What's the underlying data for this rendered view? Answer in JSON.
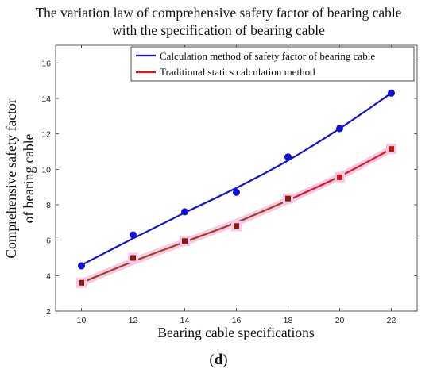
{
  "chart_data": {
    "type": "line",
    "title_line1": "The variation law of comprehensive safety factor of bearing cable",
    "title_line2": "with the specification of bearing cable",
    "xlabel": "Bearing cable specifications",
    "ylabel_line1": "Comprehensive safety factor",
    "ylabel_line2": "of bearing cable",
    "panel_label": "d",
    "xlim": [
      9,
      23
    ],
    "ylim": [
      2,
      17
    ],
    "xticks": [
      10,
      12,
      14,
      16,
      18,
      20,
      22
    ],
    "yticks": [
      2,
      4,
      6,
      8,
      10,
      12,
      14,
      16
    ],
    "grid": false,
    "legend_position": "top-right",
    "series": [
      {
        "name": "Calculation method of safety factor of bearing cable",
        "color": "#1010d8",
        "marker": "circle",
        "x": [
          10,
          12,
          14,
          16,
          18,
          20,
          22
        ],
        "points": [
          4.55,
          6.3,
          7.6,
          8.7,
          10.7,
          12.3,
          14.3
        ],
        "curve": [
          4.6,
          6.1,
          7.55,
          8.95,
          10.5,
          12.3,
          14.3
        ]
      },
      {
        "name": "Traditional statics calculation method",
        "color": "#e01818",
        "fit_color": "#a0401a",
        "marker": "square",
        "x": [
          10,
          12,
          14,
          16,
          18,
          20,
          22
        ],
        "points": [
          3.6,
          5.0,
          5.95,
          6.8,
          8.35,
          9.55,
          11.15
        ],
        "curve": [
          3.6,
          4.8,
          5.9,
          7.0,
          8.25,
          9.6,
          11.15
        ]
      }
    ]
  }
}
